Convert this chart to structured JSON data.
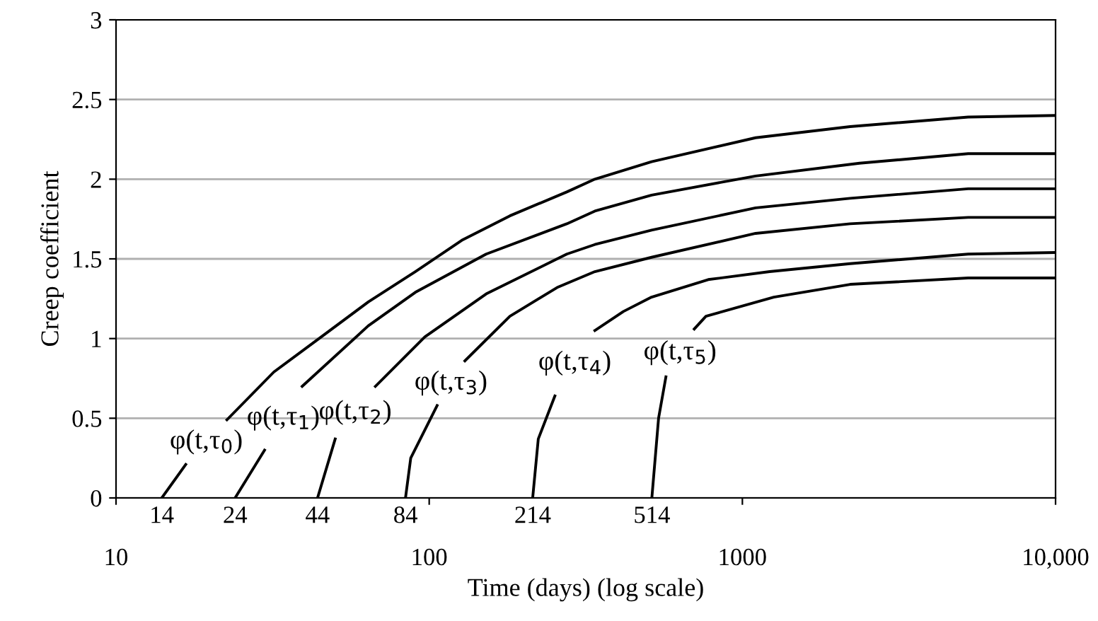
{
  "chart_data": {
    "type": "line",
    "xlabel": "Time (days) (log scale)",
    "ylabel": "Creep coefficient",
    "log": "x",
    "grid": "y",
    "marker": "none",
    "line_style": "solid",
    "xlim": [
      10,
      10000
    ],
    "ylim": [
      0,
      3
    ],
    "xticks": [
      10,
      100,
      1000,
      {
        "value": 10000,
        "label": "10,000"
      }
    ],
    "yticks": [
      0,
      0.5,
      1,
      1.5,
      2,
      2.5,
      3
    ],
    "series": [
      {
        "color": "#000000",
        "x": [
          14,
          16.7,
          18,
          22.6,
          31.9,
          45.2,
          63.9,
          90.3,
          128,
          181,
          275,
          338,
          513,
          1102,
          2208,
          5260,
          10000
        ],
        "values": [
          0,
          0.21,
          null,
          0.49,
          0.79,
          1.01,
          1.23,
          1.42,
          1.62,
          1.77,
          1.92,
          2.0,
          2.11,
          2.26,
          2.33,
          2.39,
          2.4
        ]
      },
      {
        "color": "#000000",
        "x": [
          24,
          29.8,
          33,
          39.3,
          63.9,
          90.3,
          152,
          275,
          338,
          513,
          1102,
          2366,
          5260,
          10000
        ],
        "values": [
          0,
          0.3,
          null,
          0.7,
          1.08,
          1.29,
          1.53,
          1.72,
          1.8,
          1.9,
          2.02,
          2.1,
          2.16,
          2.16
        ]
      },
      {
        "color": "#000000",
        "x": [
          44,
          50.1,
          55,
          67.3,
          96.8,
          152,
          275,
          338,
          513,
          1102,
          2208,
          5260,
          10000
        ],
        "values": [
          0,
          0.37,
          null,
          0.7,
          1.01,
          1.28,
          1.53,
          1.59,
          1.68,
          1.82,
          1.88,
          1.94,
          1.94
        ]
      },
      {
        "color": "#000000",
        "x": [
          84,
          87.3,
          106,
          115,
          130,
          181,
          256,
          338,
          513,
          1102,
          2208,
          5260,
          10000
        ],
        "values": [
          0,
          0.25,
          0.58,
          null,
          0.86,
          1.14,
          1.32,
          1.42,
          1.51,
          1.66,
          1.72,
          1.76,
          1.76
        ]
      },
      {
        "color": "#000000",
        "x": [
          214,
          223,
          252,
          290,
          338,
          417,
          513,
          778,
          1222,
          2208,
          5260,
          10000
        ],
        "values": [
          0,
          0.37,
          0.64,
          null,
          1.05,
          1.17,
          1.26,
          1.37,
          1.42,
          1.47,
          1.53,
          1.54
        ]
      },
      {
        "color": "#000000",
        "x": [
          514,
          540,
          570,
          640,
          702,
          765,
          1260,
          2208,
          5260,
          10000
        ],
        "values": [
          0,
          0.5,
          0.76,
          null,
          1.06,
          1.14,
          1.26,
          1.34,
          1.38,
          1.38
        ]
      }
    ],
    "annotations": [
      "φ(t,τ$_{0}$)",
      "φ(t,τ$_{1}$)",
      "φ(t,τ$_{2}$)",
      "φ(t,τ$_{3}$)",
      "φ(t,τ$_{4}$)",
      "φ(t,τ$_{5}$)",
      {
        "text": "14",
        "x": 14,
        "y": 0
      },
      {
        "text": "24",
        "x": 24,
        "y": 0
      },
      {
        "text": "44",
        "x": 44,
        "y": 0
      },
      {
        "text": "84",
        "x": 84,
        "y": 0
      },
      {
        "text": "214",
        "x": 214,
        "y": 0
      },
      {
        "text": "514",
        "x": 514,
        "y": 0
      }
    ]
  }
}
